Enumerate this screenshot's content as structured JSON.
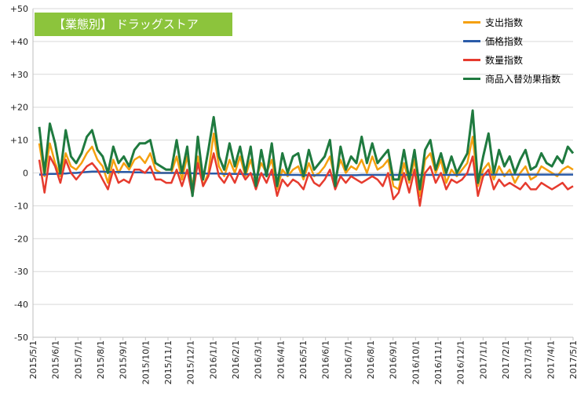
{
  "chart_data": {
    "type": "line",
    "title": "【業態別】 ドラッグストア",
    "ylim": [
      -50,
      50
    ],
    "yticks": [
      "+50",
      "+40",
      "+30",
      "+20",
      "+10",
      "0",
      "-10",
      "-20",
      "-30",
      "-40",
      "-50"
    ],
    "xtick_labels": [
      "2015/5/1",
      "2015/6/1",
      "2015/7/1",
      "2015/8/1",
      "2015/9/1",
      "2015/10/1",
      "2015/11/1",
      "2015/12/1",
      "2016/1/1",
      "2016/2/1",
      "2016/3/1",
      "2016/4/1",
      "2016/5/1",
      "2016/6/1",
      "2016/7/1",
      "2016/8/1",
      "2016/9/1",
      "2016/10/1",
      "2016/11/1",
      "2016/12/1",
      "2017/1/1",
      "2017/2/1",
      "2017/3/1",
      "2017/4/1",
      "2017/5/1"
    ],
    "legend_position": "top-right",
    "grid": true,
    "series": [
      {
        "name": "支出指数",
        "color": "#f5a00f",
        "values": [
          9,
          -1,
          9,
          3,
          -1,
          6,
          2,
          1,
          3,
          6,
          8,
          4,
          2,
          -3,
          4,
          0,
          3,
          1,
          4,
          5,
          3,
          6,
          1,
          0,
          0,
          0,
          5,
          -2,
          5,
          -4,
          5,
          -4,
          0,
          12,
          2,
          -1,
          4,
          0,
          5,
          -1,
          4,
          -2,
          3,
          0,
          4,
          -5,
          1,
          -1,
          1,
          2,
          -2,
          3,
          -1,
          0,
          2,
          5,
          -2,
          4,
          0,
          2,
          1,
          4,
          0,
          5,
          1,
          2,
          4,
          -4,
          -5,
          3,
          -3,
          4,
          -7,
          4,
          6,
          0,
          4,
          -3,
          1,
          -1,
          1,
          3,
          11,
          -4,
          1,
          3,
          -2,
          2,
          -1,
          1,
          -3,
          0,
          2,
          -2,
          -1,
          2,
          1,
          0,
          -1,
          1,
          2,
          1
        ],
        "line_width": 2.5
      },
      {
        "name": "価格指数",
        "color": "#2a5ba8",
        "values": [
          -0.5,
          -0.5,
          -0.3,
          -0.3,
          -0.2,
          -0.2,
          0,
          0,
          0.2,
          0.3,
          0.4,
          0.4,
          0.4,
          0.3,
          0.3,
          0.3,
          0.3,
          0.3,
          0.2,
          0.2,
          0.1,
          0.1,
          0,
          0,
          0,
          0,
          0,
          0,
          -0.1,
          -0.1,
          -0.2,
          -0.2,
          -0.2,
          -0.2,
          -0.2,
          -0.3,
          -0.3,
          -0.3,
          -0.3,
          -0.4,
          -0.4,
          -0.5,
          -0.5,
          -0.5,
          -0.5,
          -0.6,
          -0.6,
          -0.6,
          -0.6,
          -0.6,
          -0.7,
          -0.7,
          -0.7,
          -0.7,
          -0.7,
          -0.7,
          -0.7,
          -0.7,
          -0.7,
          -0.7,
          -0.7,
          -0.6,
          -0.6,
          -0.6,
          -0.6,
          -0.6,
          -0.6,
          -0.6,
          -0.6,
          -0.6,
          -0.6,
          -0.6,
          -0.6,
          -0.6,
          -0.6,
          -0.6,
          -0.6,
          -0.6,
          -0.6,
          -0.6,
          -0.5,
          -0.5,
          -0.5,
          -0.5,
          -0.5,
          -0.5,
          -0.5,
          -0.5,
          -0.5,
          -0.5,
          -0.5,
          -0.5,
          -0.5,
          -0.5,
          -0.5,
          -0.5,
          -0.5,
          -0.5,
          -0.5,
          -0.5,
          -0.5,
          -0.5
        ],
        "line_width": 2.5
      },
      {
        "name": "数量指数",
        "color": "#e63b2e",
        "values": [
          4,
          -6,
          5,
          2,
          -3,
          4,
          0,
          -2,
          0,
          2,
          3,
          1,
          -2,
          -5,
          1,
          -3,
          -2,
          -3,
          1,
          1,
          0,
          2,
          -2,
          -2,
          -3,
          -3,
          1,
          -4,
          1,
          -7,
          3,
          -4,
          -1,
          6,
          -1,
          -3,
          0,
          -3,
          1,
          -2,
          0,
          -5,
          0,
          -3,
          1,
          -7,
          -2,
          -4,
          -2,
          -3,
          -5,
          0,
          -3,
          -4,
          -2,
          1,
          -5,
          -1,
          -3,
          -1,
          -2,
          -3,
          -2,
          -1,
          -2,
          -4,
          0,
          -8,
          -6,
          0,
          -6,
          1,
          -10,
          0,
          2,
          -3,
          0,
          -5,
          -2,
          -3,
          -2,
          0,
          5,
          -7,
          -1,
          1,
          -5,
          -2,
          -4,
          -3,
          -4,
          -5,
          -3,
          -5,
          -5,
          -3,
          -4,
          -5,
          -4,
          -3,
          -5,
          -4
        ],
        "line_width": 2.5
      },
      {
        "name": "商品入替効果指数",
        "color": "#1f7a3f",
        "values": [
          14,
          0,
          15,
          9,
          0,
          13,
          5,
          3,
          6,
          11,
          13,
          7,
          5,
          0,
          8,
          3,
          5,
          2,
          7,
          9,
          9,
          10,
          3,
          2,
          1,
          1,
          10,
          0,
          8,
          -7,
          11,
          -2,
          7,
          17,
          5,
          1,
          9,
          2,
          8,
          0,
          8,
          -4,
          7,
          -1,
          9,
          -4,
          6,
          0,
          5,
          6,
          -1,
          7,
          1,
          3,
          5,
          10,
          -4,
          8,
          1,
          5,
          3,
          11,
          3,
          9,
          3,
          5,
          7,
          -2,
          -2,
          7,
          -2,
          7,
          -5,
          7,
          10,
          1,
          6,
          0,
          5,
          0,
          3,
          6,
          19,
          -3,
          5,
          12,
          0,
          7,
          2,
          5,
          0,
          4,
          7,
          1,
          2,
          6,
          3,
          2,
          5,
          3,
          8,
          6
        ],
        "line_width": 3
      }
    ]
  }
}
